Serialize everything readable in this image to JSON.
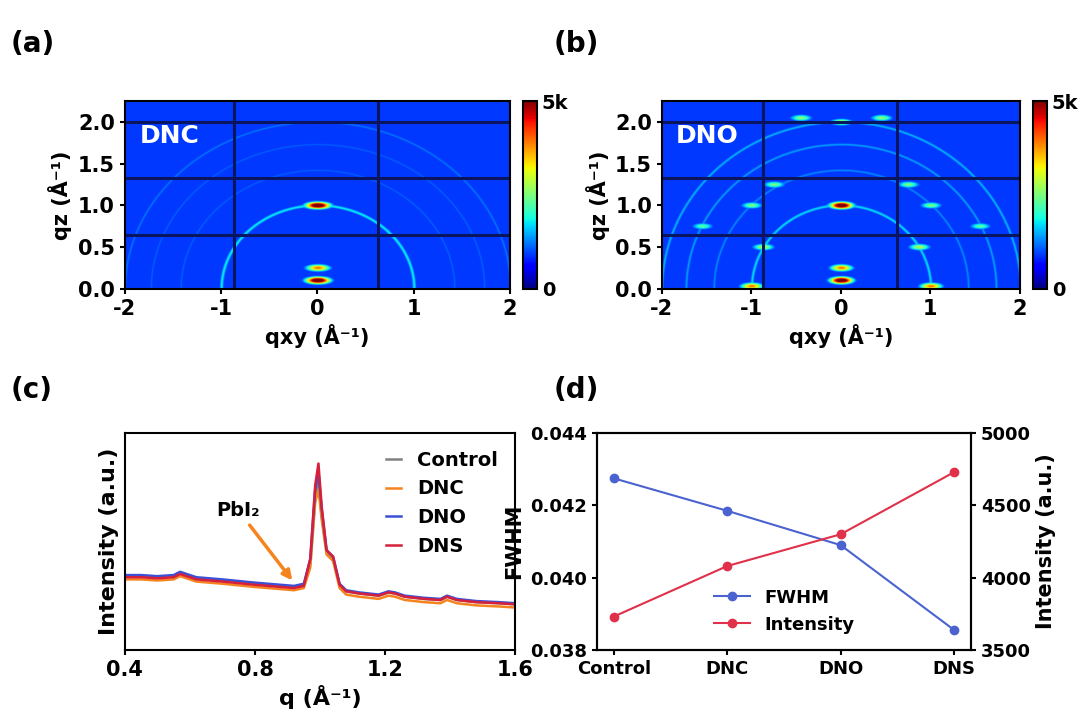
{
  "chart_data": [
    {
      "type": "heatmap",
      "panel": "(a)",
      "title": "DNC",
      "x_label": "qxy (Å⁻¹)",
      "y_label": "qz (Å⁻¹)",
      "xlim": [
        -2,
        2
      ],
      "ylim": [
        0,
        2.25
      ],
      "xticks": [
        -2,
        -1,
        0,
        1,
        2
      ],
      "yticks": [
        0.0,
        0.5,
        1.0,
        1.5,
        2.0
      ],
      "background": 900,
      "rings": [
        {
          "q": 1.0,
          "intensity": 1800
        },
        {
          "q": 1.42,
          "intensity": 1100
        },
        {
          "q": 1.73,
          "intensity": 1100
        },
        {
          "q": 2.0,
          "intensity": 1200
        }
      ],
      "spots": [
        {
          "qxy": 0,
          "qz": 1.0,
          "intensity": 6000
        },
        {
          "qxy": 0,
          "qz": 0.1,
          "intensity": 6000
        },
        {
          "qxy": 0,
          "qz": 0.25,
          "intensity": 4000
        }
      ],
      "detector_gaps": {
        "qz": [
          0.65,
          1.33,
          2.0
        ],
        "qxy": [
          -0.87,
          0.63
        ]
      },
      "colorbar": {
        "range": [
          0,
          5000
        ],
        "ticks": [
          {
            "value": 0,
            "label": "0"
          },
          {
            "value": 5000,
            "label": "5k"
          }
        ]
      }
    },
    {
      "type": "heatmap",
      "panel": "(b)",
      "title": "DNO",
      "x_label": "qxy (Å⁻¹)",
      "y_label": "qz (Å⁻¹)",
      "xlim": [
        -2,
        2
      ],
      "ylim": [
        0,
        2.25
      ],
      "xticks": [
        -2,
        -1,
        0,
        1,
        2
      ],
      "yticks": [
        0.0,
        0.5,
        1.0,
        1.5,
        2.0
      ],
      "background": 900,
      "rings": [
        {
          "q": 1.0,
          "intensity": 1700
        },
        {
          "q": 1.42,
          "intensity": 1300
        },
        {
          "q": 1.73,
          "intensity": 1400
        },
        {
          "q": 2.0,
          "intensity": 1500
        }
      ],
      "spots": [
        {
          "qxy": 0,
          "qz": 1.0,
          "intensity": 6000
        },
        {
          "qxy": 0,
          "qz": 0.1,
          "intensity": 6000
        },
        {
          "qxy": 0,
          "qz": 0.25,
          "intensity": 4000
        },
        {
          "qxy": -1.0,
          "qz": 0.03,
          "intensity": 4000
        },
        {
          "qxy": 1.0,
          "qz": 0.03,
          "intensity": 4000
        },
        {
          "qxy": -0.87,
          "qz": 0.5,
          "intensity": 2800
        },
        {
          "qxy": 0.87,
          "qz": 0.5,
          "intensity": 2800
        },
        {
          "qxy": -1.0,
          "qz": 1.0,
          "intensity": 2500
        },
        {
          "qxy": 1.0,
          "qz": 1.0,
          "intensity": 2500
        },
        {
          "qxy": -0.75,
          "qz": 1.25,
          "intensity": 2500
        },
        {
          "qxy": 0.75,
          "qz": 1.25,
          "intensity": 2500
        },
        {
          "qxy": 0,
          "qz": 2.0,
          "intensity": 3000
        },
        {
          "qxy": -0.45,
          "qz": 2.05,
          "intensity": 2600
        },
        {
          "qxy": 0.45,
          "qz": 2.05,
          "intensity": 2600
        },
        {
          "qxy": -1.55,
          "qz": 0.75,
          "intensity": 2300
        },
        {
          "qxy": 1.55,
          "qz": 0.75,
          "intensity": 2300
        }
      ],
      "detector_gaps": {
        "qz": [
          0.65,
          1.33,
          2.0
        ],
        "qxy": [
          -0.87,
          0.63
        ]
      },
      "colorbar": {
        "range": [
          0,
          5000
        ],
        "ticks": [
          {
            "value": 0,
            "label": "0"
          },
          {
            "value": 5000,
            "label": "5k"
          }
        ]
      }
    },
    {
      "type": "line",
      "panel": "(c)",
      "x_label": "q (Å⁻¹)",
      "y_label": "Intensity (a.u.)",
      "xlim": [
        0.4,
        1.6
      ],
      "ylim": [
        0,
        1
      ],
      "xticks": [
        0.4,
        0.8,
        1.2,
        1.6
      ],
      "yticks": [],
      "tick_labels": "x",
      "legend": "upper right",
      "x": [
        0.4,
        0.45,
        0.5,
        0.55,
        0.57,
        0.59,
        0.62,
        0.7,
        0.8,
        0.88,
        0.92,
        0.95,
        0.97,
        0.985,
        0.995,
        1.005,
        1.02,
        1.04,
        1.06,
        1.08,
        1.12,
        1.18,
        1.21,
        1.23,
        1.26,
        1.32,
        1.37,
        1.39,
        1.42,
        1.48,
        1.55,
        1.6
      ],
      "series": [
        {
          "name": "Control",
          "color": "#808080",
          "values": [
            0.34,
            0.34,
            0.335,
            0.34,
            0.355,
            0.345,
            0.33,
            0.32,
            0.305,
            0.295,
            0.29,
            0.3,
            0.4,
            0.7,
            0.78,
            0.62,
            0.45,
            0.42,
            0.3,
            0.27,
            0.26,
            0.25,
            0.265,
            0.26,
            0.245,
            0.235,
            0.23,
            0.245,
            0.23,
            0.22,
            0.215,
            0.21
          ]
        },
        {
          "name": "DNC",
          "color": "#f5841f",
          "values": [
            0.325,
            0.325,
            0.32,
            0.325,
            0.34,
            0.33,
            0.315,
            0.305,
            0.29,
            0.28,
            0.275,
            0.285,
            0.38,
            0.68,
            0.74,
            0.6,
            0.44,
            0.41,
            0.285,
            0.255,
            0.245,
            0.235,
            0.25,
            0.245,
            0.23,
            0.22,
            0.215,
            0.23,
            0.215,
            0.205,
            0.2,
            0.195
          ]
        },
        {
          "name": "DNO",
          "color": "#3b50d6",
          "values": [
            0.345,
            0.345,
            0.34,
            0.345,
            0.36,
            0.35,
            0.335,
            0.325,
            0.31,
            0.3,
            0.295,
            0.305,
            0.42,
            0.74,
            0.82,
            0.65,
            0.46,
            0.43,
            0.305,
            0.275,
            0.265,
            0.255,
            0.27,
            0.265,
            0.25,
            0.24,
            0.235,
            0.25,
            0.235,
            0.225,
            0.22,
            0.215
          ]
        },
        {
          "name": "DNS",
          "color": "#d6203a",
          "values": [
            0.335,
            0.335,
            0.33,
            0.335,
            0.35,
            0.34,
            0.325,
            0.315,
            0.3,
            0.29,
            0.285,
            0.295,
            0.42,
            0.76,
            0.86,
            0.66,
            0.46,
            0.43,
            0.3,
            0.27,
            0.26,
            0.25,
            0.265,
            0.26,
            0.245,
            0.235,
            0.23,
            0.245,
            0.23,
            0.22,
            0.215,
            0.21
          ]
        }
      ],
      "annotations": [
        {
          "text": "PbI₂",
          "x": 0.92,
          "y": 0.31,
          "color": "#f5841f"
        }
      ]
    },
    {
      "type": "line",
      "panel": "(d)",
      "y_label": "FWHM",
      "y2_label": "Intensity (a.u.)",
      "categories": [
        "Control",
        "DNC",
        "DNO",
        "DNS"
      ],
      "ylim": [
        0.038,
        0.044
      ],
      "yticks": [
        {
          "value": 0.038,
          "label": "0.038"
        },
        {
          "value": 0.04,
          "label": "0.040"
        },
        {
          "value": 0.042,
          "label": "0.042"
        },
        {
          "value": 0.044,
          "label": "0.044"
        }
      ],
      "y2lim": [
        3500,
        5000
      ],
      "y2ticks": [
        3500,
        4000,
        4500,
        5000
      ],
      "legend": "lower center",
      "series": [
        {
          "name": "FWHM",
          "color": "#4a63d0",
          "marker": "o",
          "values": [
            0.04275,
            0.04185,
            0.0409,
            0.03855
          ]
        },
        {
          "name": "Intensity",
          "color": "#e0304a",
          "marker": "o",
          "axis": "y2",
          "values": [
            3730,
            4080,
            4300,
            4730
          ]
        }
      ]
    }
  ]
}
